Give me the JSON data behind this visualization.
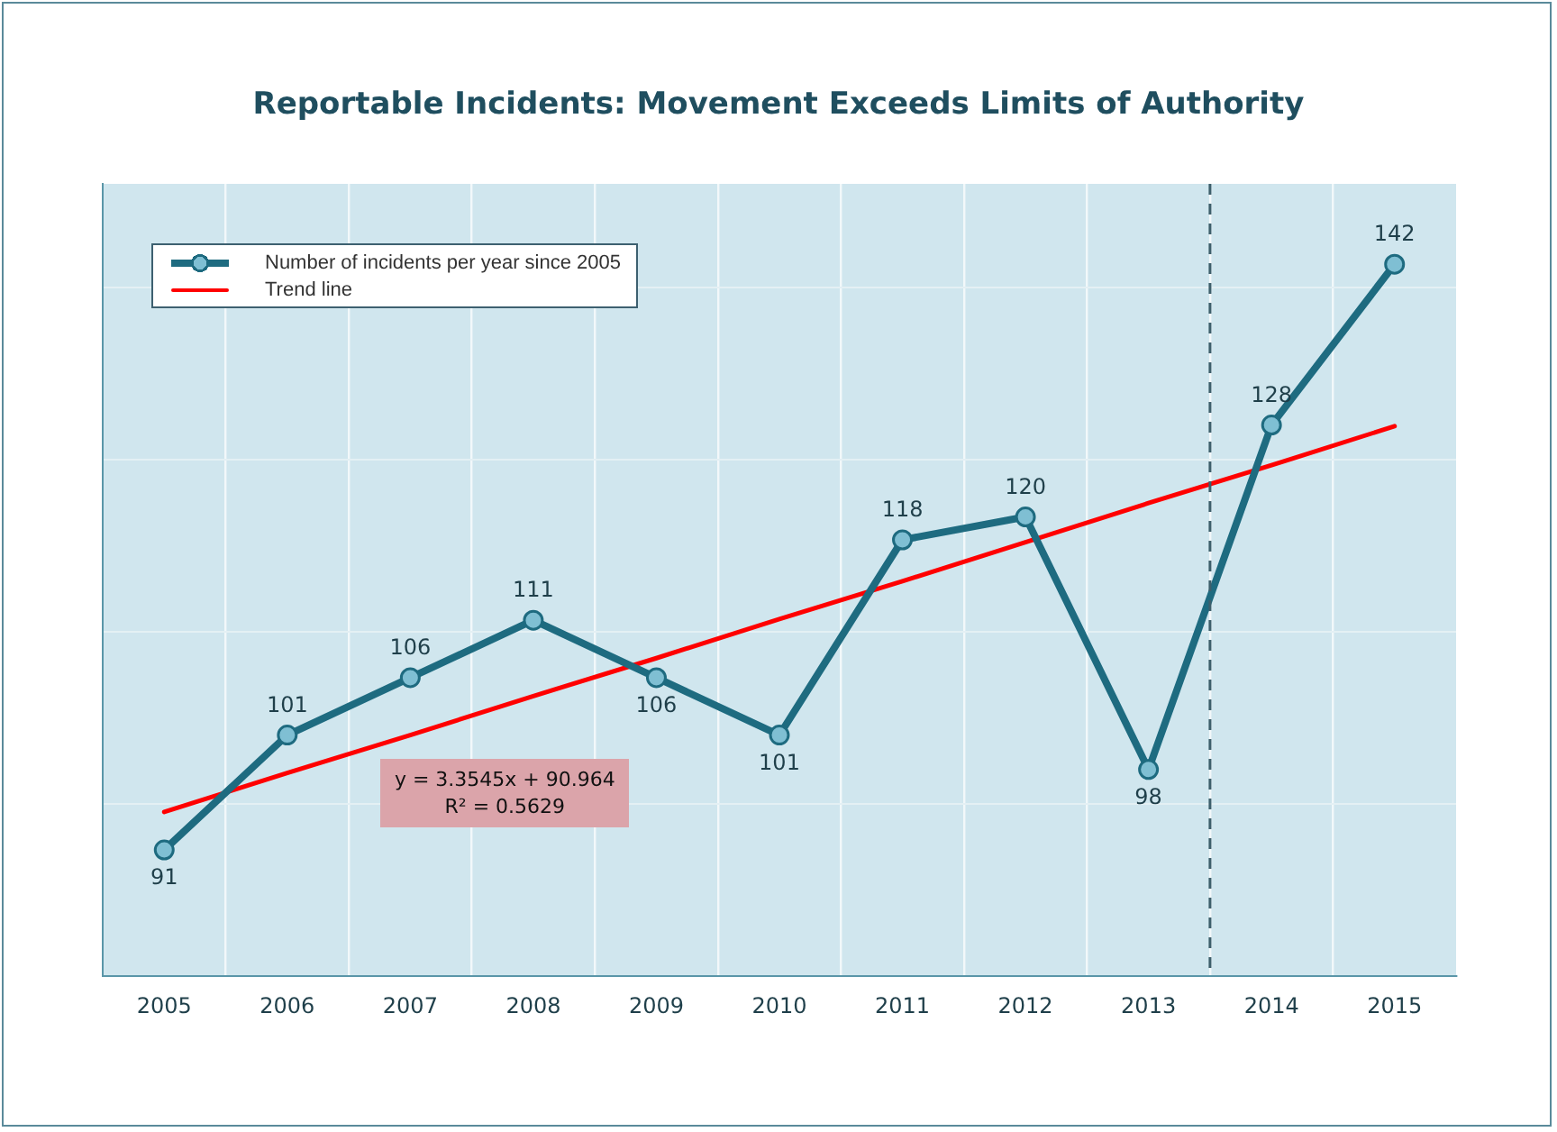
{
  "chart_data": {
    "type": "line",
    "title": "Reportable Incidents: Movement Exceeds Limits of Authority",
    "x": [
      2005,
      2006,
      2007,
      2008,
      2009,
      2010,
      2011,
      2012,
      2013,
      2014,
      2015
    ],
    "series": [
      {
        "name": "Number of incidents per year since 2005",
        "color": "#1e6b80",
        "marker": "circle",
        "values": [
          91,
          101,
          106,
          111,
          106,
          101,
          118,
          120,
          98,
          128,
          142
        ],
        "value_labels": [
          "91",
          "101",
          "106",
          "111",
          "106",
          "101",
          "118",
          "120",
          "98",
          "128",
          "142"
        ]
      },
      {
        "name": "Trend line",
        "color": "#ff0000",
        "marker": "none",
        "values": [
          94.3,
          97.7,
          101.0,
          104.4,
          107.7,
          111.1,
          114.4,
          117.8,
          121.2,
          124.5,
          127.9
        ]
      }
    ],
    "xlim": [
      2004.5,
      2015.5
    ],
    "xticks": [
      2005,
      {
        "value": 2005.5,
        "label": null
      },
      2006,
      {
        "value": 2006.5,
        "label": null
      },
      2007,
      {
        "value": 2007.5,
        "label": null
      },
      2008,
      {
        "value": 2008.5,
        "label": null
      },
      2009,
      {
        "value": 2009.5,
        "label": null
      },
      2010,
      {
        "value": 2010.5,
        "label": null
      },
      2011,
      {
        "value": 2011.5,
        "label": null
      },
      2012,
      {
        "value": 2012.5,
        "label": null
      },
      2013,
      {
        "value": 2013.5,
        "label": null
      },
      2014,
      {
        "value": 2014.5,
        "label": null
      },
      2015
    ],
    "ylim": [
      80,
      149
    ],
    "yticks": [
      {
        "value": 95,
        "label": null
      },
      {
        "value": 110,
        "label": null
      },
      {
        "value": 125,
        "label": null
      },
      {
        "value": 140,
        "label": null
      }
    ],
    "tick_labels": "x",
    "grid": true,
    "legend": "top left",
    "ref_lines": [
      {
        "axis": "x",
        "value": 2013.5,
        "color": "#3d5f6b",
        "line_style": "dashed"
      }
    ],
    "annotations": [
      "y = 3.3545x + 90.964",
      "R² = 0.5629"
    ]
  }
}
